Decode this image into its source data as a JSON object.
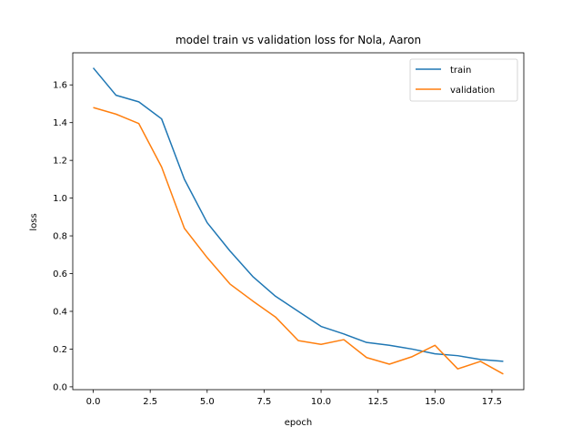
{
  "chart_data": {
    "type": "line",
    "title": "model train vs validation loss for Nola, Aaron",
    "xlabel": "epoch",
    "ylabel": "loss",
    "xlim": [
      -0.9,
      18.9
    ],
    "ylim": [
      -0.015,
      1.77
    ],
    "xticks": [
      0,
      2.5,
      5,
      7.5,
      10,
      12.5,
      15,
      17.5
    ],
    "xtick_labels": [
      "0.0",
      "2.5",
      "5.0",
      "7.5",
      "10.0",
      "12.5",
      "15.0",
      "17.5"
    ],
    "yticks": [
      0,
      0.2,
      0.4,
      0.6,
      0.8,
      1.0,
      1.2,
      1.4,
      1.6
    ],
    "ytick_labels": [
      "0.0",
      "0.2",
      "0.4",
      "0.6",
      "0.8",
      "1.0",
      "1.2",
      "1.4",
      "1.6"
    ],
    "grid": false,
    "legend_position": "top-right",
    "x": [
      0,
      1,
      2,
      3,
      4,
      5,
      6,
      7,
      8,
      9,
      10,
      11,
      12,
      13,
      14,
      15,
      16,
      17,
      18
    ],
    "series": [
      {
        "name": "train",
        "color": "#1f77b4",
        "values": [
          1.69,
          1.545,
          1.51,
          1.42,
          1.1,
          0.87,
          0.72,
          0.585,
          0.48,
          0.4,
          0.32,
          0.28,
          0.235,
          0.22,
          0.2,
          0.175,
          0.165,
          0.145,
          0.135
        ]
      },
      {
        "name": "validation",
        "color": "#ff7f0e",
        "values": [
          1.48,
          1.445,
          1.395,
          1.165,
          0.84,
          0.685,
          0.545,
          0.455,
          0.37,
          0.245,
          0.225,
          0.25,
          0.155,
          0.12,
          0.16,
          0.22,
          0.095,
          0.135,
          0.068
        ]
      }
    ]
  }
}
